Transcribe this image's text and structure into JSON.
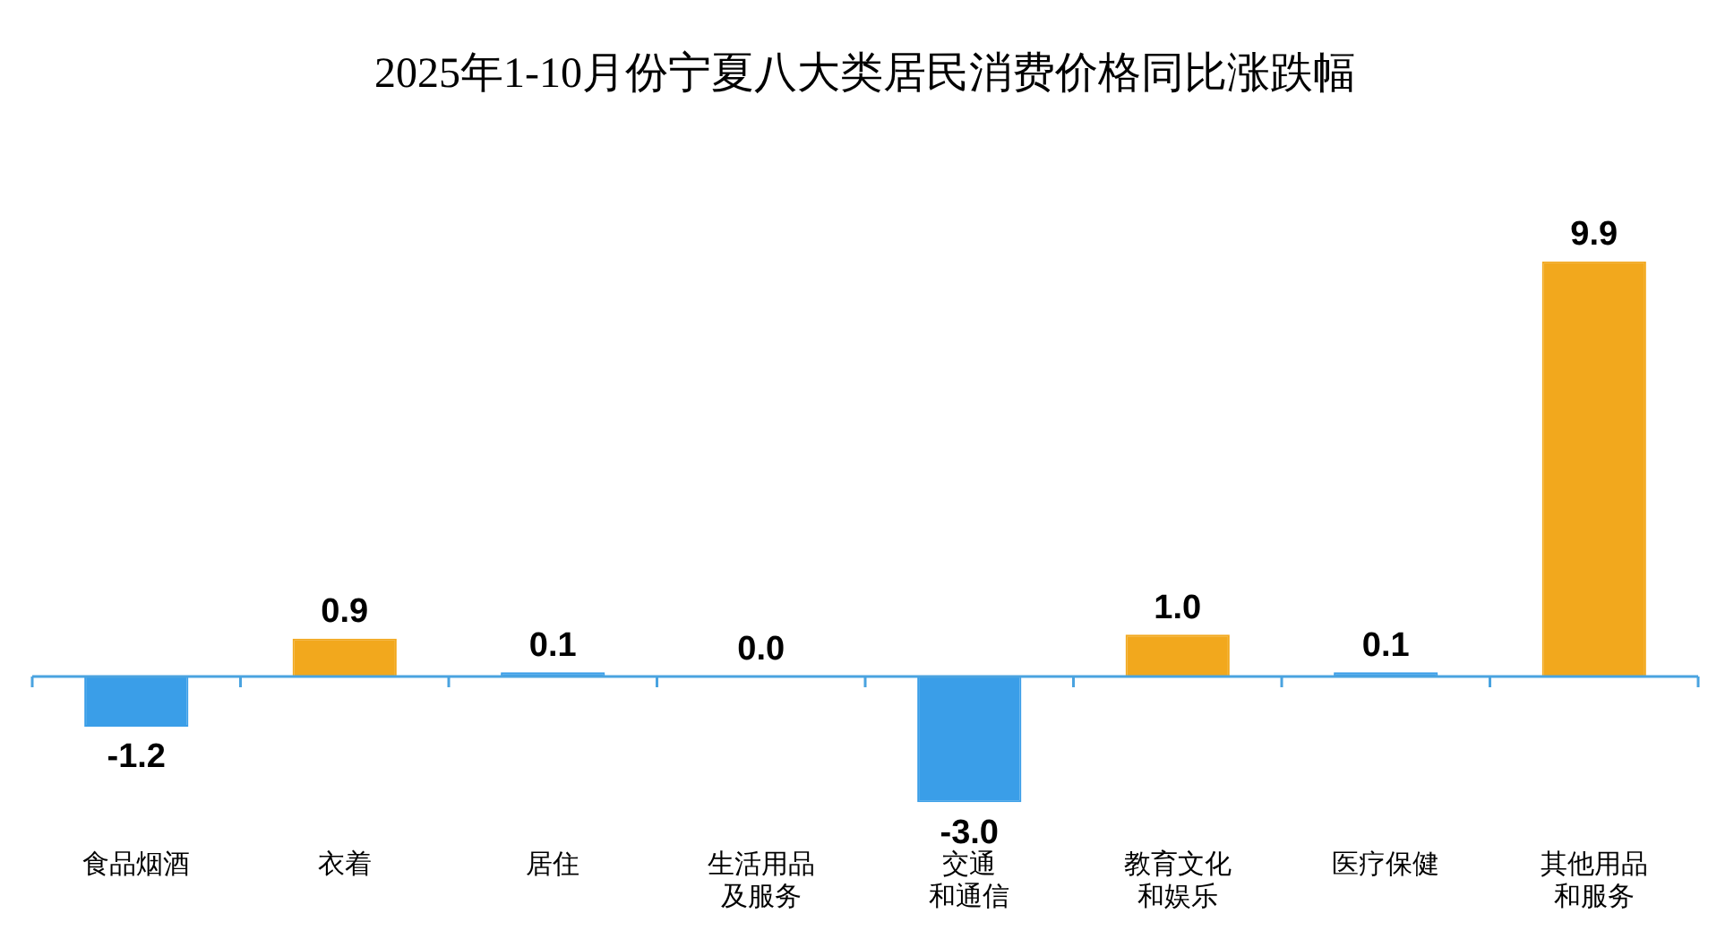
{
  "chart_data": {
    "type": "bar",
    "title": "2025年1-10月份宁夏八大类居民消费价格同比涨跌幅",
    "categories": [
      "食品烟酒",
      "衣着",
      "居住",
      "生活用品及服务",
      "交通和通信",
      "教育文化和娱乐",
      "医疗保健",
      "其他用品和服务"
    ],
    "values": [
      -1.2,
      0.9,
      0.1,
      0.0,
      -3.0,
      1.0,
      0.1,
      9.9
    ],
    "value_labels": [
      "-1.2",
      "0.9",
      "0.1",
      "0.0",
      "-3.0",
      "1.0",
      "0.1",
      "9.9"
    ],
    "colors": [
      "#3a9ee8",
      "#f2a81d",
      "#3a9ee8",
      "#3a9ee8",
      "#3a9ee8",
      "#f2a81d",
      "#3a9ee8",
      "#f2a81d"
    ],
    "ref_lines": [
      {
        "axis": "y",
        "value": 0,
        "color": "#4aa3e0"
      }
    ],
    "grid": false,
    "legend": false
  }
}
